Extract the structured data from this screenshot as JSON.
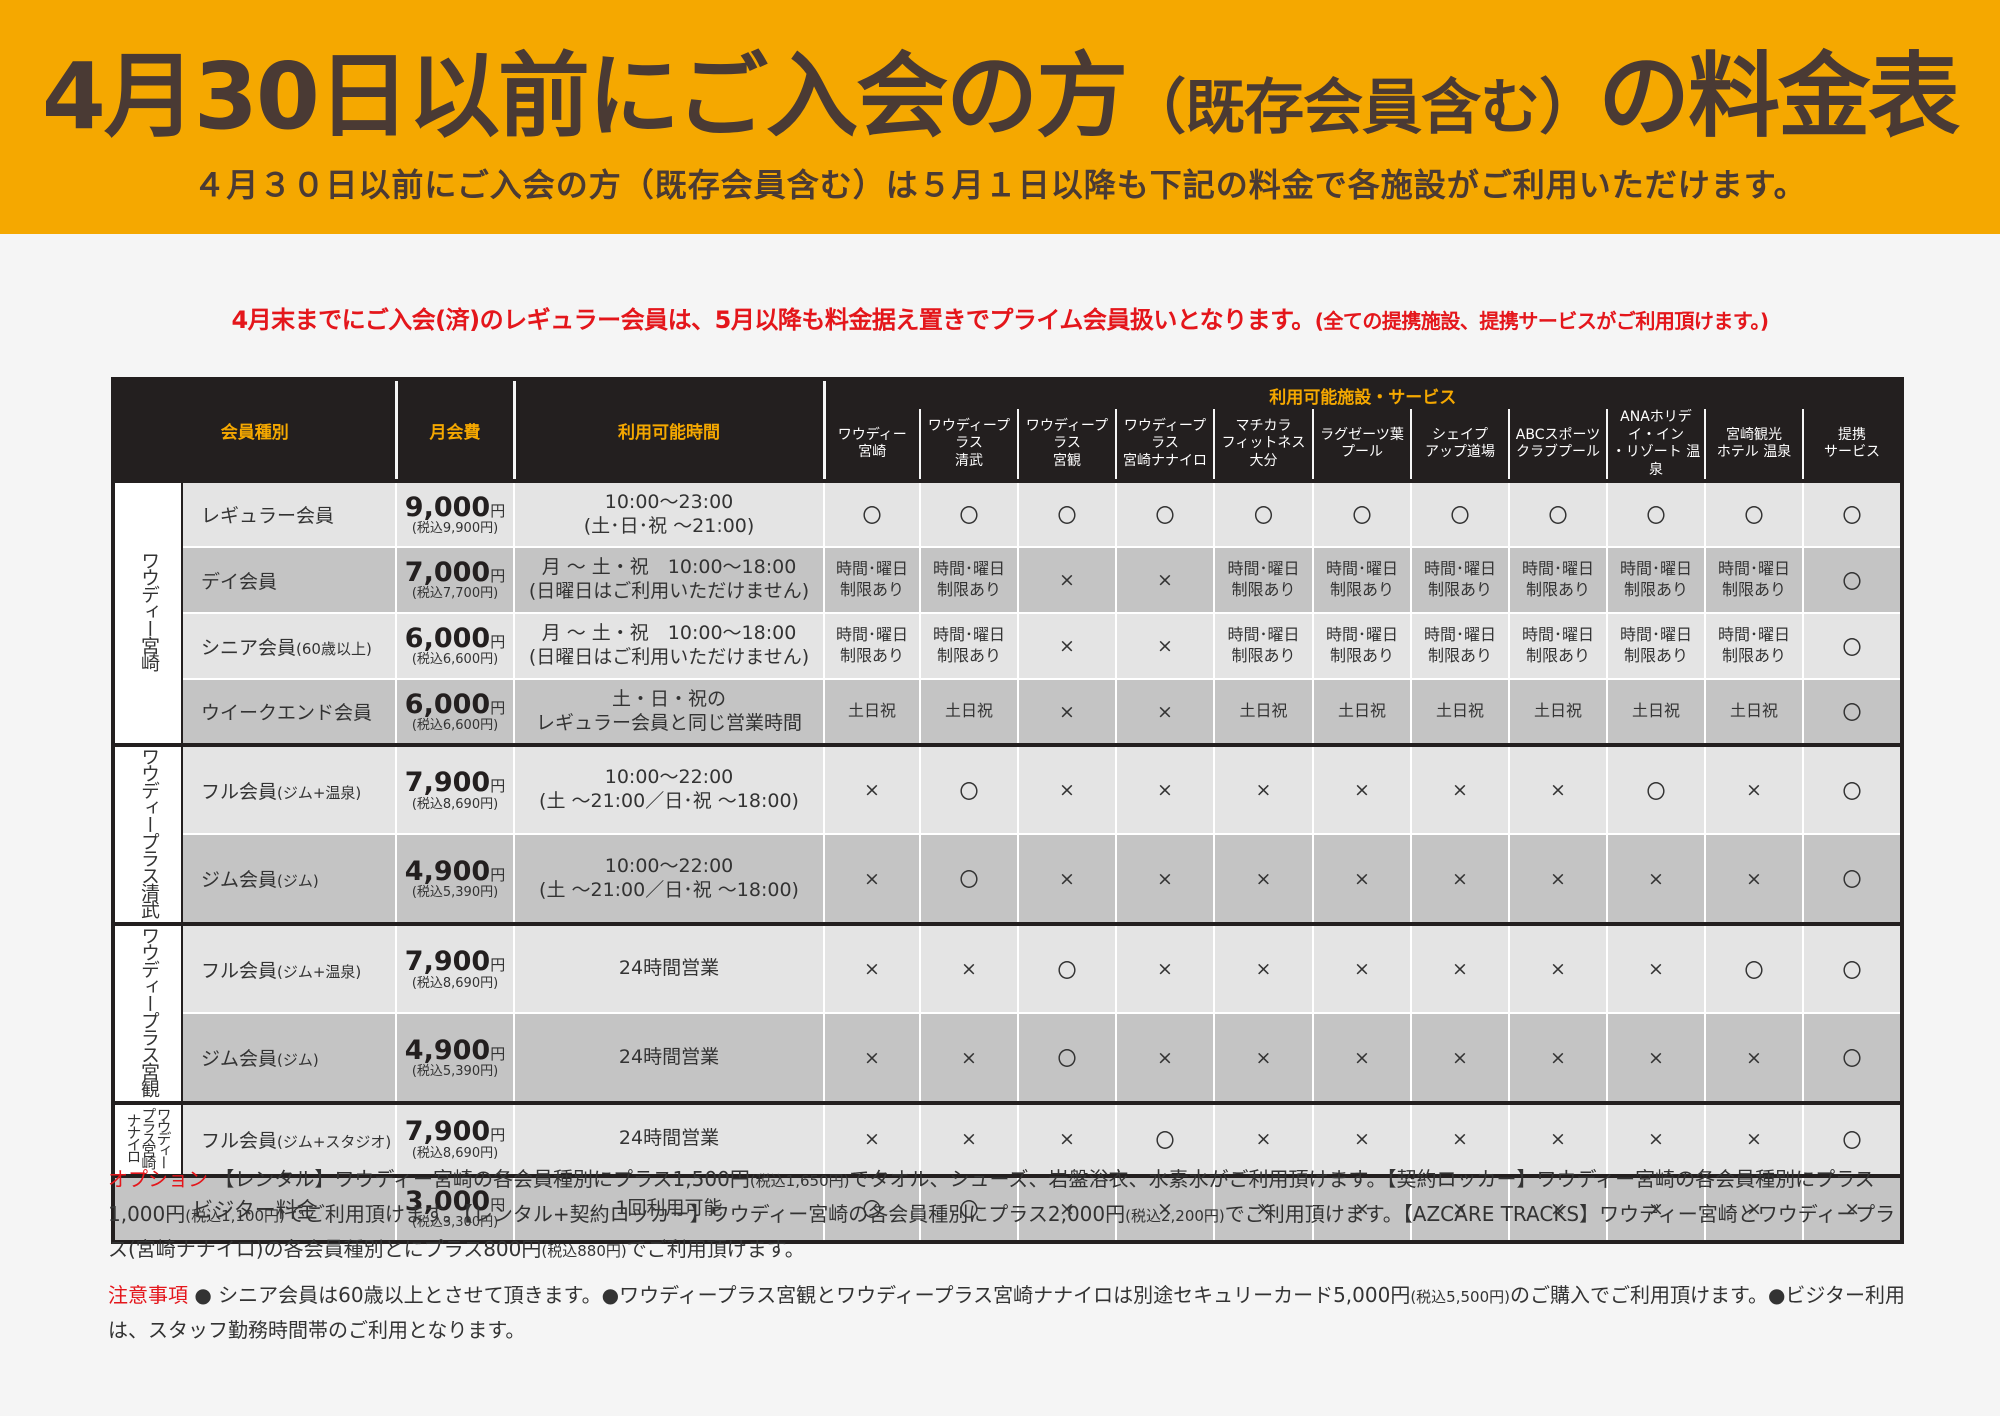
{
  "header": {
    "title_main": "4月30日以前にご入会の方",
    "title_paren": "（既存会員含む）",
    "title_end": "の料金表",
    "subtitle": "４月３０日以前にご入会の方（既存会員含む）は５月１日以降も下記の料金で各施設がご利用いただけます。"
  },
  "notice": {
    "main": "4月末までにご入会(済)のレギュラー会員は、5月以降も料金据え置きでプライム会員扱いとなります。",
    "note": "(全ての提携施設、提携サービスがご利用頂けます。)"
  },
  "table": {
    "headers": {
      "membership_type": "会員種別",
      "monthly_fee": "月会費",
      "hours": "利用可能時間",
      "facilities_label": "利用可能施設・サービス"
    },
    "facilities": [
      [
        "ワウディー",
        "宮崎"
      ],
      [
        "ワウディープラス",
        "清武"
      ],
      [
        "ワウディープラス",
        "宮観"
      ],
      [
        "ワウディープラス",
        "宮崎ナナイロ"
      ],
      [
        "マチカラ",
        "フィットネス大分"
      ],
      [
        "ラグゼーツ葉",
        "プール"
      ],
      [
        "シェイプ",
        "アップ道場"
      ],
      [
        "ABCスポーツ",
        "クラブプール"
      ],
      [
        "ANAホリデイ・イン",
        "・リゾート 温泉"
      ],
      [
        "宮崎観光",
        "ホテル 温泉"
      ],
      [
        "提携",
        "サービス"
      ]
    ],
    "groups": [
      {
        "name": "ワウディー宮崎",
        "rows": [
          {
            "name": "レギュラー会員",
            "name_sub": "",
            "fee": "9,000",
            "fee_unit": "円",
            "fee_tax": "(税込9,900円)",
            "hours": [
              "10:00〜23:00",
              "(土･日･祝 〜21:00)"
            ],
            "marks": [
              "〇",
              "〇",
              "〇",
              "〇",
              "〇",
              "〇",
              "〇",
              "〇",
              "〇",
              "〇",
              "〇"
            ]
          },
          {
            "name": "デイ会員",
            "name_sub": "",
            "fee": "7,000",
            "fee_unit": "円",
            "fee_tax": "(税込7,700円)",
            "hours": [
              "月 〜 土・祝　10:00〜18:00",
              "(日曜日はご利用いただけません)"
            ],
            "marks": [
              "時間･曜日\n制限あり",
              "時間･曜日\n制限あり",
              "×",
              "×",
              "時間･曜日\n制限あり",
              "時間･曜日\n制限あり",
              "時間･曜日\n制限あり",
              "時間･曜日\n制限あり",
              "時間･曜日\n制限あり",
              "時間･曜日\n制限あり",
              "〇"
            ]
          },
          {
            "name": "シニア会員",
            "name_sub": "(60歳以上)",
            "fee": "6,000",
            "fee_unit": "円",
            "fee_tax": "(税込6,600円)",
            "hours": [
              "月 〜 土・祝　10:00〜18:00",
              "(日曜日はご利用いただけません)"
            ],
            "marks": [
              "時間･曜日\n制限あり",
              "時間･曜日\n制限あり",
              "×",
              "×",
              "時間･曜日\n制限あり",
              "時間･曜日\n制限あり",
              "時間･曜日\n制限あり",
              "時間･曜日\n制限あり",
              "時間･曜日\n制限あり",
              "時間･曜日\n制限あり",
              "〇"
            ]
          },
          {
            "name": "ウイークエンド会員",
            "name_sub": "",
            "fee": "6,000",
            "fee_unit": "円",
            "fee_tax": "(税込6,600円)",
            "hours": [
              "土・日・祝の",
              "レギュラー会員と同じ営業時間"
            ],
            "marks": [
              "土日祝",
              "土日祝",
              "×",
              "×",
              "土日祝",
              "土日祝",
              "土日祝",
              "土日祝",
              "土日祝",
              "土日祝",
              "〇"
            ]
          }
        ]
      },
      {
        "name": "ワウディープラス清武",
        "rows": [
          {
            "name": "フル会員",
            "name_sub": "(ジム+温泉)",
            "fee": "7,900",
            "fee_unit": "円",
            "fee_tax": "(税込8,690円)",
            "hours": [
              "10:00〜22:00",
              "(土 〜21:00／日･祝 〜18:00)"
            ],
            "marks": [
              "×",
              "〇",
              "×",
              "×",
              "×",
              "×",
              "×",
              "×",
              "〇",
              "×",
              "〇"
            ]
          },
          {
            "name": "ジム会員",
            "name_sub": "(ジム)",
            "fee": "4,900",
            "fee_unit": "円",
            "fee_tax": "(税込5,390円)",
            "hours": [
              "10:00〜22:00",
              "(土 〜21:00／日･祝 〜18:00)"
            ],
            "marks": [
              "×",
              "〇",
              "×",
              "×",
              "×",
              "×",
              "×",
              "×",
              "×",
              "×",
              "〇"
            ]
          }
        ]
      },
      {
        "name": "ワウディープラス宮観",
        "rows": [
          {
            "name": "フル会員",
            "name_sub": "(ジム+温泉)",
            "fee": "7,900",
            "fee_unit": "円",
            "fee_tax": "(税込8,690円)",
            "hours": [
              "24時間営業"
            ],
            "marks": [
              "×",
              "×",
              "〇",
              "×",
              "×",
              "×",
              "×",
              "×",
              "×",
              "〇",
              "〇"
            ]
          },
          {
            "name": "ジム会員",
            "name_sub": "(ジム)",
            "fee": "4,900",
            "fee_unit": "円",
            "fee_tax": "(税込5,390円)",
            "hours": [
              "24時間営業"
            ],
            "marks": [
              "×",
              "×",
              "〇",
              "×",
              "×",
              "×",
              "×",
              "×",
              "×",
              "×",
              "〇"
            ]
          }
        ]
      },
      {
        "name": "ワウディープラス宮崎ナナイロ",
        "rows": [
          {
            "name": "フル会員",
            "name_sub": "(ジム+スタジオ)",
            "fee": "7,900",
            "fee_unit": "円",
            "fee_tax": "(税込8,690円)",
            "hours": [
              "24時間営業"
            ],
            "marks": [
              "×",
              "×",
              "×",
              "〇",
              "×",
              "×",
              "×",
              "×",
              "×",
              "×",
              "〇"
            ]
          }
        ]
      }
    ],
    "visitor": {
      "name": "ビジター料金",
      "fee": "3,000",
      "fee_unit": "円",
      "fee_tax": "(税込3,300円)",
      "hours": [
        "1回利用可能"
      ],
      "marks": [
        "〇",
        "〇",
        "×",
        "×",
        "×",
        "×",
        "×",
        "×",
        "×",
        "×",
        "×"
      ]
    }
  },
  "footer": {
    "option_label": "オプション",
    "option_text": "【レンタル】ワウディー宮崎の各会員種別にプラス1,500円(税込1,650円)でタオル、シューズ、岩盤浴衣、水素水がご利用頂けます。【契約ロッカー】ワウディー宮崎の各会員種別にプラス1,000円(税込1,100円)でご利用頂けます。【レンタル+契約ロッカー】ワウディー宮崎の各会員種別にプラス2,000円(税込2,200円)でご利用頂けます。【AZCARE TRACKS】ワウディー宮崎とワウディープラス(宮崎ナナイロ)の各会員種別とにプラス800円(税込880円)でご利用頂けます。",
    "caution_label": "注意事項",
    "caution_text": "● シニア会員は60歳以上とさせて頂きます。●ワウディープラス宮観とワウディープラス宮崎ナナイロは別途セキュリーカード5,000円(税込5,500円)のご購入でご利用頂けます。●ビジター利用は、スタッフ勤務時間帯のご利用となります。"
  },
  "colors": {
    "header_bg": "#f5a800",
    "title": "#4a3a34",
    "accent_red": "#e4161b",
    "table_header": "#231f1f"
  }
}
